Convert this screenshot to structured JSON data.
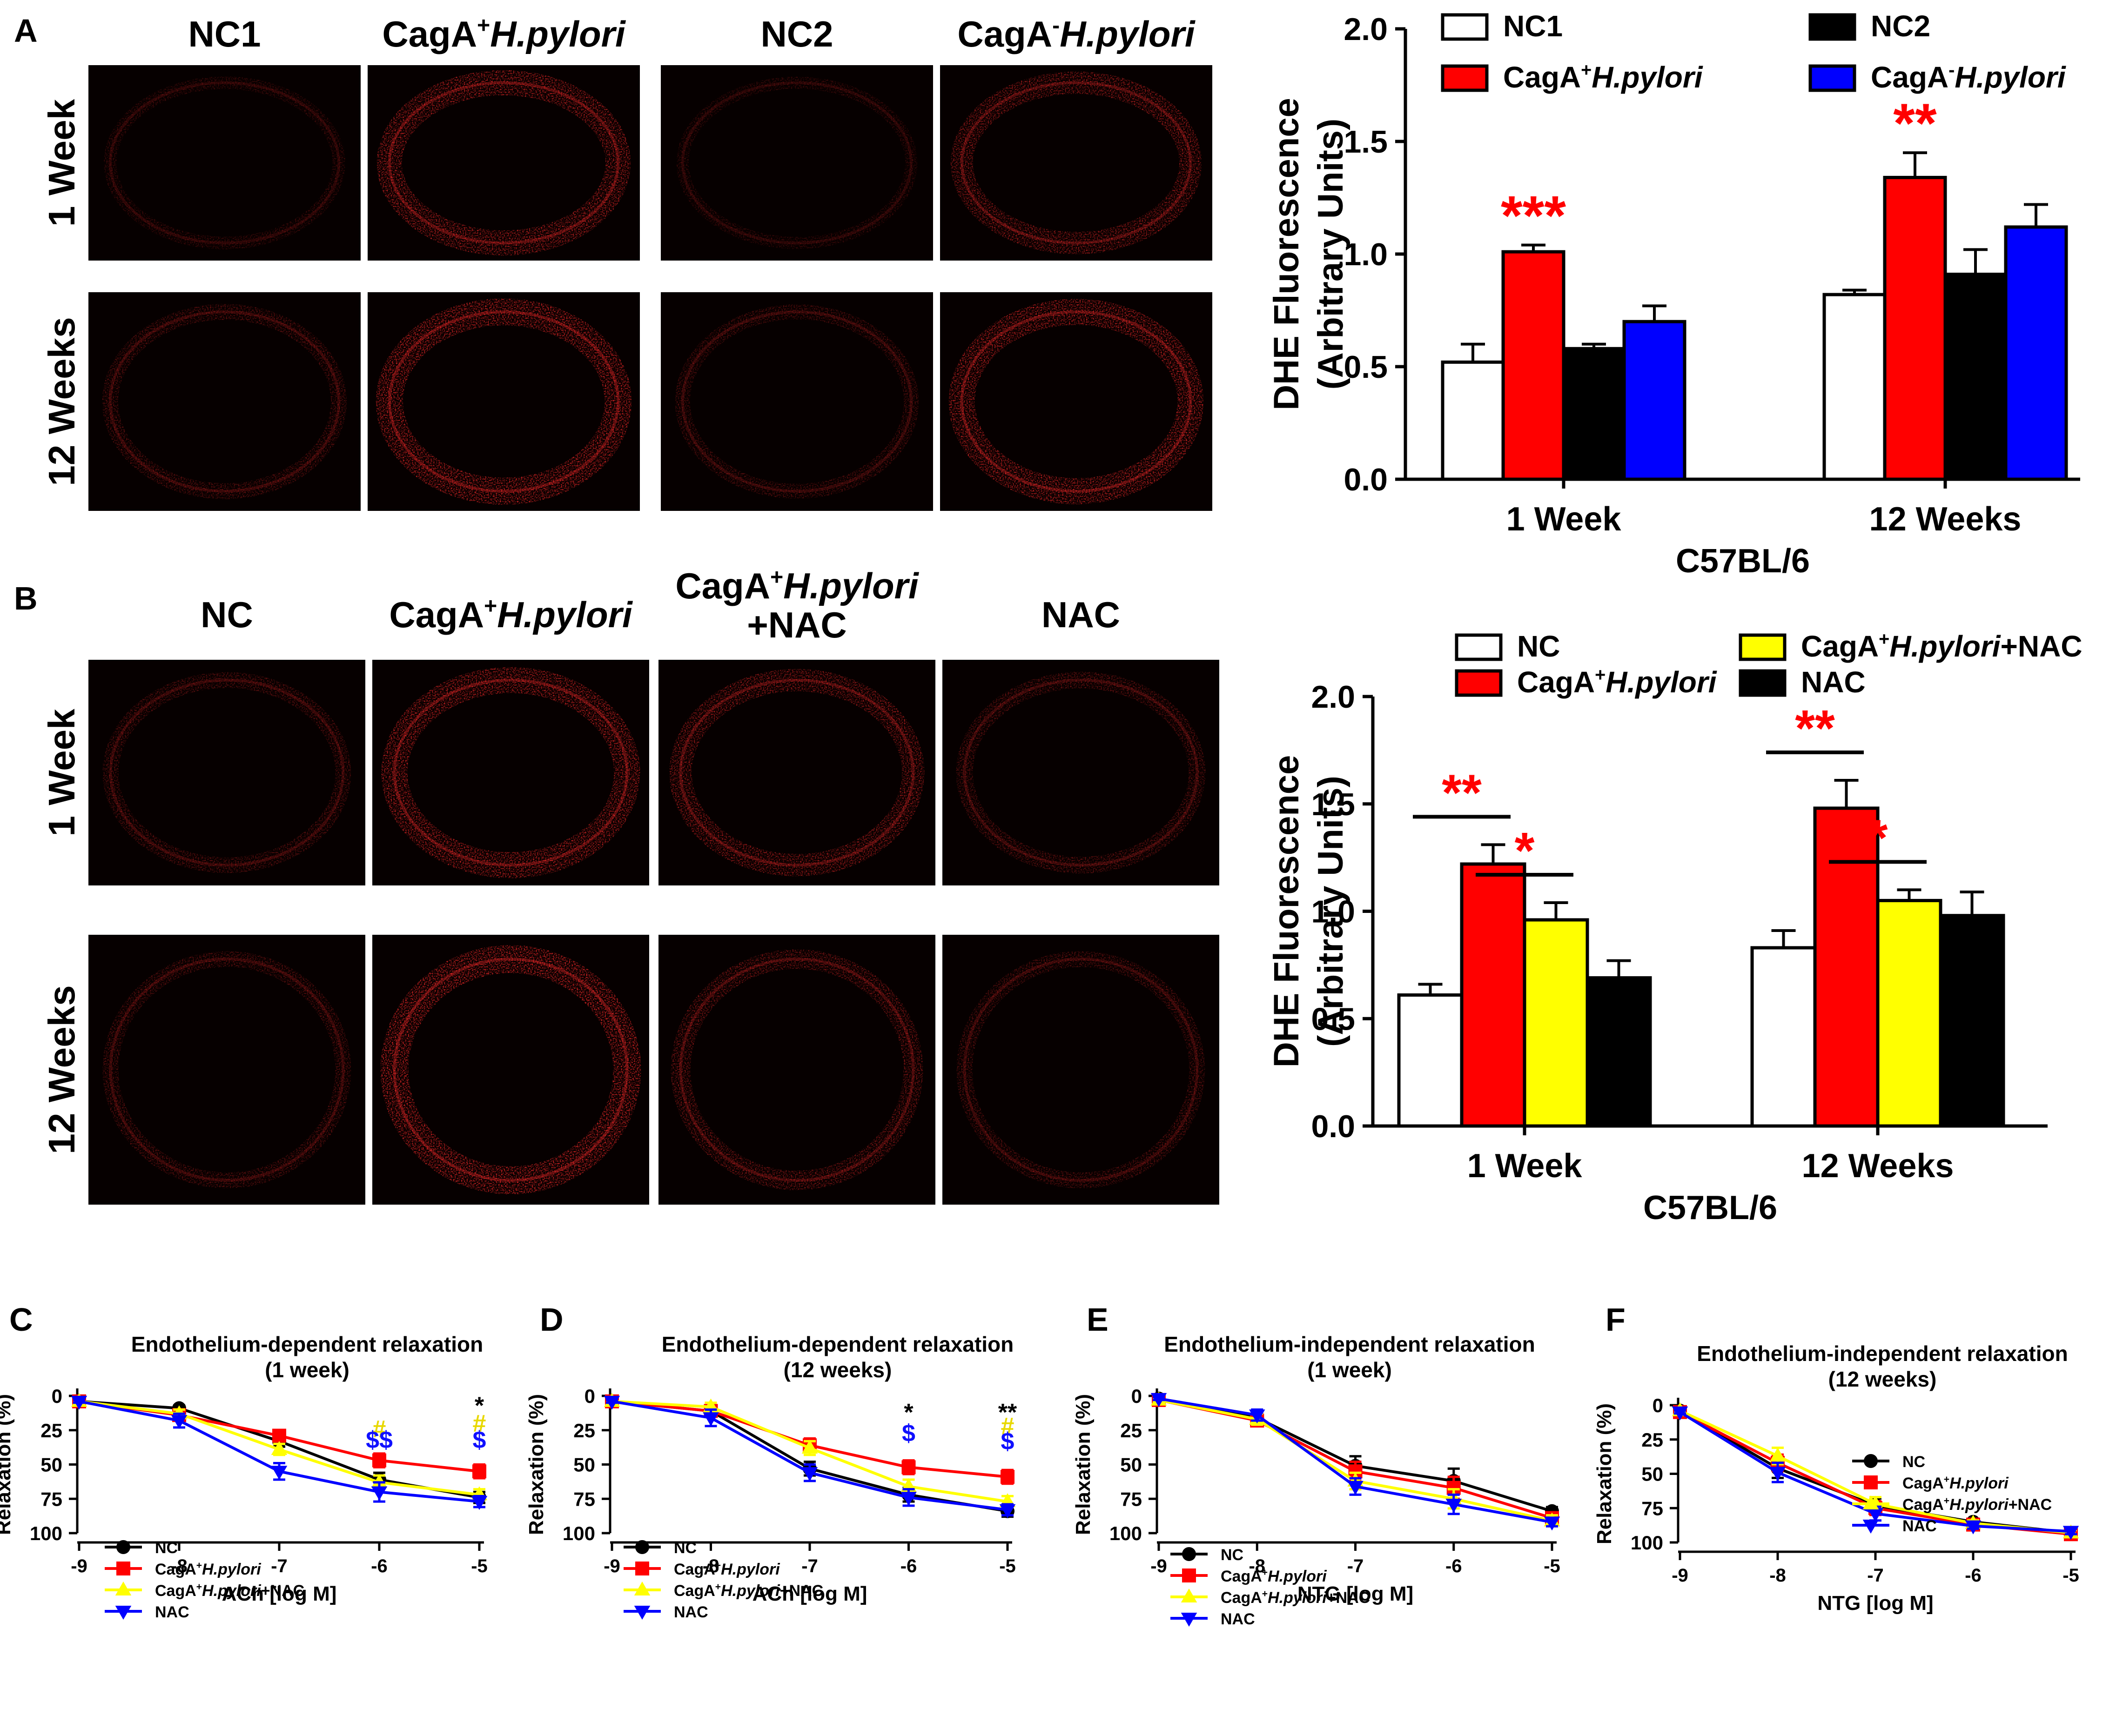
{
  "panels": {
    "A": {
      "label": "A",
      "row_labels": [
        "1 Week",
        "12 Weeks"
      ],
      "columns": [
        {
          "base": "NC1",
          "sup": "",
          "italic": ""
        },
        {
          "base": "CagA",
          "sup": "+",
          "italic": "H.pylori"
        },
        {
          "base": "NC2",
          "sup": "",
          "italic": ""
        },
        {
          "base": "CagA",
          "sup": "-",
          "italic": "H.pylori"
        }
      ],
      "intensity": [
        [
          0.18,
          0.85,
          0.15,
          0.7
        ],
        [
          0.35,
          0.95,
          0.3,
          0.9
        ]
      ]
    },
    "B": {
      "label": "B",
      "row_labels": [
        "1 Week",
        "12 Weeks"
      ],
      "columns": [
        {
          "base": "NC",
          "sup": "",
          "italic": ""
        },
        {
          "base": "CagA",
          "sup": "+",
          "italic": "H.pylori"
        },
        {
          "base": "CagA",
          "sup": "+",
          "italic": "H.pylori",
          "line2": "+NAC"
        },
        {
          "base": "NAC",
          "sup": "",
          "italic": ""
        }
      ],
      "intensity": [
        [
          0.35,
          0.9,
          0.7,
          0.4
        ],
        [
          0.35,
          1.0,
          0.55,
          0.35
        ]
      ]
    },
    "C": {
      "label": "C"
    },
    "D": {
      "label": "D"
    },
    "E": {
      "label": "E"
    },
    "F": {
      "label": "F"
    }
  },
  "colors": {
    "white_bar": "#ffffff",
    "red": "#ff0000",
    "black": "#000000",
    "blue": "#0000ff",
    "yellow": "#ffff00",
    "annot_red": "#ff0000",
    "annot_blue": "#1010ff",
    "annot_yellow": "#e8d800",
    "micro_ring": "#ff2a2a"
  },
  "chart_data": [
    {
      "id": "A-bar",
      "type": "bar",
      "categories": [
        "1 Week",
        "12 Weeks"
      ],
      "xlabel": "C57BL/6",
      "ylabel": [
        "DHE Fluorescence",
        "(Arbitrary Units)"
      ],
      "ylim": [
        0,
        2.0
      ],
      "yticks": [
        "0.0",
        "0.5",
        "1.0",
        "1.5",
        "2.0"
      ],
      "series": [
        {
          "name": "NC1",
          "base": "NC1",
          "sup": "",
          "italic": "",
          "color": "#ffffff",
          "values": [
            0.52,
            0.82
          ],
          "errors": [
            0.08,
            0.02
          ]
        },
        {
          "name": "CagA+H.pylori",
          "base": "CagA",
          "sup": "+",
          "italic": "H.pylori",
          "color": "#ff0000",
          "values": [
            1.01,
            1.34
          ],
          "errors": [
            0.03,
            0.11
          ]
        },
        {
          "name": "NC2",
          "base": "NC2",
          "sup": "",
          "italic": "",
          "color": "#000000",
          "values": [
            0.58,
            0.91
          ],
          "errors": [
            0.02,
            0.11
          ]
        },
        {
          "name": "CagA-H.pylori",
          "base": "CagA",
          "sup": "-",
          "italic": "H.pylori",
          "color": "#0000ff",
          "values": [
            0.7,
            1.12
          ],
          "errors": [
            0.07,
            0.1
          ]
        }
      ],
      "annotations": [
        {
          "text": "***",
          "group": 0,
          "series": 1,
          "color": "#ff0000"
        },
        {
          "text": "**",
          "group": 1,
          "series": 1,
          "color": "#ff0000"
        }
      ]
    },
    {
      "id": "B-bar",
      "type": "bar",
      "categories": [
        "1 Week",
        "12 Weeks"
      ],
      "xlabel": "C57BL/6",
      "ylabel": [
        "DHE Fluorescence",
        "(Arbitrary Units)"
      ],
      "ylim": [
        0,
        2.0
      ],
      "yticks": [
        "0.0",
        "0.5",
        "1.0",
        "1.5",
        "2.0"
      ],
      "series": [
        {
          "name": "NC",
          "base": "NC",
          "sup": "",
          "italic": "",
          "color": "#ffffff",
          "values": [
            0.61,
            0.83
          ],
          "errors": [
            0.05,
            0.08
          ]
        },
        {
          "name": "CagA+H.pylori",
          "base": "CagA",
          "sup": "+",
          "italic": "H.pylori",
          "color": "#ff0000",
          "values": [
            1.22,
            1.48
          ],
          "errors": [
            0.09,
            0.13
          ]
        },
        {
          "name": "CagA+H.pylori+NAC",
          "base": "CagA",
          "sup": "+",
          "italic": "H.pylori",
          "suffix": "+NAC",
          "color": "#ffff00",
          "values": [
            0.96,
            1.05
          ],
          "errors": [
            0.08,
            0.05
          ]
        },
        {
          "name": "NAC",
          "base": "NAC",
          "sup": "",
          "italic": "",
          "color": "#000000",
          "values": [
            0.69,
            0.98
          ],
          "errors": [
            0.08,
            0.11
          ]
        }
      ],
      "annotations": [
        {
          "text": "**",
          "group": 0,
          "series": 1,
          "color": "#ff0000",
          "bracket": [
            0,
            1
          ]
        },
        {
          "text": "*",
          "group": 0,
          "series": 2,
          "color": "#ff0000",
          "bracket": [
            1,
            2
          ]
        },
        {
          "text": "**",
          "group": 1,
          "series": 1,
          "color": "#ff0000",
          "bracket": [
            0,
            1
          ]
        },
        {
          "text": "*",
          "group": 1,
          "series": 2,
          "color": "#ff0000",
          "bracket": [
            1,
            2
          ]
        }
      ]
    },
    {
      "id": "C-line",
      "type": "line",
      "title": [
        "Endothelium-dependent relaxation",
        "(1 week)"
      ],
      "xlabel": "ACh [log M]",
      "ylabel": "Relaxation (%)",
      "x": [
        -9,
        -8,
        -7,
        -6,
        -5
      ],
      "xticks": [
        "-9",
        "-8",
        "-7",
        "-6",
        "-5"
      ],
      "ylim": [
        0,
        100
      ],
      "yticks": [
        "0",
        "25",
        "50",
        "75",
        "100"
      ],
      "series": [
        {
          "name": "NC",
          "base": "NC",
          "sup": "",
          "italic": "",
          "color": "#000000",
          "marker": "circle",
          "values": [
            4,
            9,
            33,
            61,
            74
          ],
          "errors": [
            1,
            2,
            4,
            5,
            4
          ]
        },
        {
          "name": "CagA+H.pylori",
          "base": "CagA",
          "sup": "+",
          "italic": "H.pylori",
          "color": "#ff0000",
          "marker": "square",
          "values": [
            4,
            14,
            29,
            47,
            55
          ],
          "errors": [
            1,
            3,
            3,
            5,
            5
          ]
        },
        {
          "name": "CagA+H.pylori+NAC",
          "base": "CagA",
          "sup": "+",
          "italic": "H.pylori",
          "suffix": "+NAC",
          "color": "#ffff00",
          "marker": "triangle-up",
          "values": [
            4,
            13,
            39,
            63,
            72
          ],
          "errors": [
            1,
            3,
            4,
            5,
            4
          ]
        },
        {
          "name": "NAC",
          "base": "NAC",
          "sup": "",
          "italic": "",
          "color": "#0000ff",
          "marker": "triangle-down",
          "values": [
            4,
            18,
            55,
            70,
            77
          ],
          "errors": [
            1,
            5,
            6,
            7,
            4
          ]
        }
      ],
      "annotations": [
        {
          "text": "#",
          "x": -6,
          "y": 30,
          "color": "#e8d800"
        },
        {
          "text": "$$",
          "x": -6,
          "y": 38,
          "color": "#1010ff"
        },
        {
          "text": "*",
          "x": -5,
          "y": 13,
          "color": "#000000"
        },
        {
          "text": "#",
          "x": -5,
          "y": 26,
          "color": "#e8d800"
        },
        {
          "text": "$",
          "x": -5,
          "y": 38,
          "color": "#1010ff"
        }
      ]
    },
    {
      "id": "D-line",
      "type": "line",
      "title": [
        "Endothelium-dependent relaxation",
        "(12 weeks)"
      ],
      "xlabel": "ACh [log M]",
      "ylabel": "Relaxation (%)",
      "x": [
        -9,
        -8,
        -7,
        -6,
        -5
      ],
      "xticks": [
        "-9",
        "-8",
        "-7",
        "-6",
        "-5"
      ],
      "ylim": [
        0,
        100
      ],
      "yticks": [
        "0",
        "25",
        "50",
        "75",
        "100"
      ],
      "series": [
        {
          "name": "NC",
          "base": "NC",
          "sup": "",
          "italic": "",
          "color": "#000000",
          "marker": "circle",
          "values": [
            4,
            11,
            53,
            72,
            84
          ],
          "errors": [
            1,
            3,
            5,
            5,
            4
          ]
        },
        {
          "name": "CagA+H.pylori",
          "base": "CagA",
          "sup": "+",
          "italic": "H.pylori",
          "color": "#ff0000",
          "marker": "square",
          "values": [
            4,
            11,
            36,
            52,
            59
          ],
          "errors": [
            1,
            3,
            5,
            5,
            5
          ]
        },
        {
          "name": "CagA+H.pylori+NAC",
          "base": "CagA",
          "sup": "+",
          "italic": "H.pylori",
          "suffix": "+NAC",
          "color": "#ffff00",
          "marker": "triangle-up",
          "values": [
            4,
            8,
            38,
            66,
            77
          ],
          "errors": [
            1,
            3,
            5,
            5,
            4
          ]
        },
        {
          "name": "NAC",
          "base": "NAC",
          "sup": "",
          "italic": "",
          "color": "#0000ff",
          "marker": "triangle-down",
          "values": [
            4,
            16,
            56,
            74,
            83
          ],
          "errors": [
            1,
            6,
            6,
            6,
            4
          ]
        }
      ],
      "annotations": [
        {
          "text": "*",
          "x": -6,
          "y": 18,
          "color": "#000000"
        },
        {
          "text": "$",
          "x": -6,
          "y": 33,
          "color": "#1010ff"
        },
        {
          "text": "**",
          "x": -5,
          "y": 18,
          "color": "#000000"
        },
        {
          "text": "#",
          "x": -5,
          "y": 28,
          "color": "#e8d800"
        },
        {
          "text": "$",
          "x": -5,
          "y": 39,
          "color": "#1010ff"
        }
      ]
    },
    {
      "id": "E-line",
      "type": "line",
      "title": [
        "Endothelium-independent relaxation",
        "(1 week)"
      ],
      "xlabel": "NTG [log M]",
      "ylabel": "Relaxation (%)",
      "x": [
        -9,
        -8,
        -7,
        -6,
        -5
      ],
      "xticks": [
        "-9",
        "-8",
        "-7",
        "-6",
        "-5"
      ],
      "ylim": [
        0,
        100
      ],
      "yticks": [
        "0",
        "25",
        "50",
        "75",
        "100"
      ],
      "series": [
        {
          "name": "NC",
          "base": "NC",
          "sup": "",
          "italic": "",
          "color": "#000000",
          "marker": "circle",
          "values": [
            2,
            16,
            51,
            62,
            84
          ],
          "errors": [
            1,
            3,
            7,
            9,
            3
          ]
        },
        {
          "name": "CagA+H.pylori",
          "base": "CagA",
          "sup": "+",
          "italic": "H.pylori",
          "color": "#ff0000",
          "marker": "square",
          "values": [
            3,
            18,
            55,
            67,
            89
          ],
          "errors": [
            1,
            4,
            7,
            8,
            4
          ]
        },
        {
          "name": "CagA+H.pylori+NAC",
          "base": "CagA",
          "sup": "+",
          "italic": "H.pylori",
          "suffix": "+NAC",
          "color": "#ffff00",
          "marker": "triangle-up",
          "values": [
            3,
            17,
            62,
            75,
            91
          ],
          "errors": [
            1,
            4,
            6,
            7,
            4
          ]
        },
        {
          "name": "NAC",
          "base": "NAC",
          "sup": "",
          "italic": "",
          "color": "#0000ff",
          "marker": "triangle-down",
          "values": [
            2,
            14,
            66,
            79,
            92
          ],
          "errors": [
            1,
            4,
            6,
            7,
            3
          ]
        }
      ],
      "annotations": []
    },
    {
      "id": "F-line",
      "type": "line",
      "title": [
        "Endothelium-independent relaxation",
        "(12 weeks)"
      ],
      "xlabel": "NTG [log M]",
      "ylabel": "Relaxation (%)",
      "x": [
        -9,
        -8,
        -7,
        -6,
        -5
      ],
      "xticks": [
        "-9",
        "-8",
        "-7",
        "-6",
        "-5"
      ],
      "ylim": [
        0,
        100
      ],
      "yticks": [
        "0",
        "25",
        "50",
        "75",
        "100"
      ],
      "series": [
        {
          "name": "NC",
          "base": "NC",
          "sup": "",
          "italic": "",
          "color": "#000000",
          "marker": "circle",
          "values": [
            4,
            46,
            73,
            85,
            93
          ],
          "errors": [
            1,
            7,
            5,
            2,
            2
          ]
        },
        {
          "name": "CagA+H.pylori",
          "base": "CagA",
          "sup": "+",
          "italic": "H.pylori",
          "color": "#ff0000",
          "marker": "square",
          "values": [
            5,
            42,
            75,
            87,
            94
          ],
          "errors": [
            1,
            6,
            5,
            2,
            2
          ]
        },
        {
          "name": "CagA+H.pylori+NAC",
          "base": "CagA",
          "sup": "+",
          "italic": "H.pylori",
          "suffix": "+NAC",
          "color": "#ffff00",
          "marker": "triangle-up",
          "values": [
            4,
            37,
            72,
            86,
            93
          ],
          "errors": [
            1,
            6,
            5,
            2,
            2
          ]
        },
        {
          "name": "NAC",
          "base": "NAC",
          "sup": "",
          "italic": "",
          "color": "#0000ff",
          "marker": "triangle-down",
          "values": [
            5,
            49,
            79,
            88,
            92
          ],
          "errors": [
            1,
            7,
            5,
            2,
            2
          ]
        }
      ],
      "annotations": []
    }
  ]
}
